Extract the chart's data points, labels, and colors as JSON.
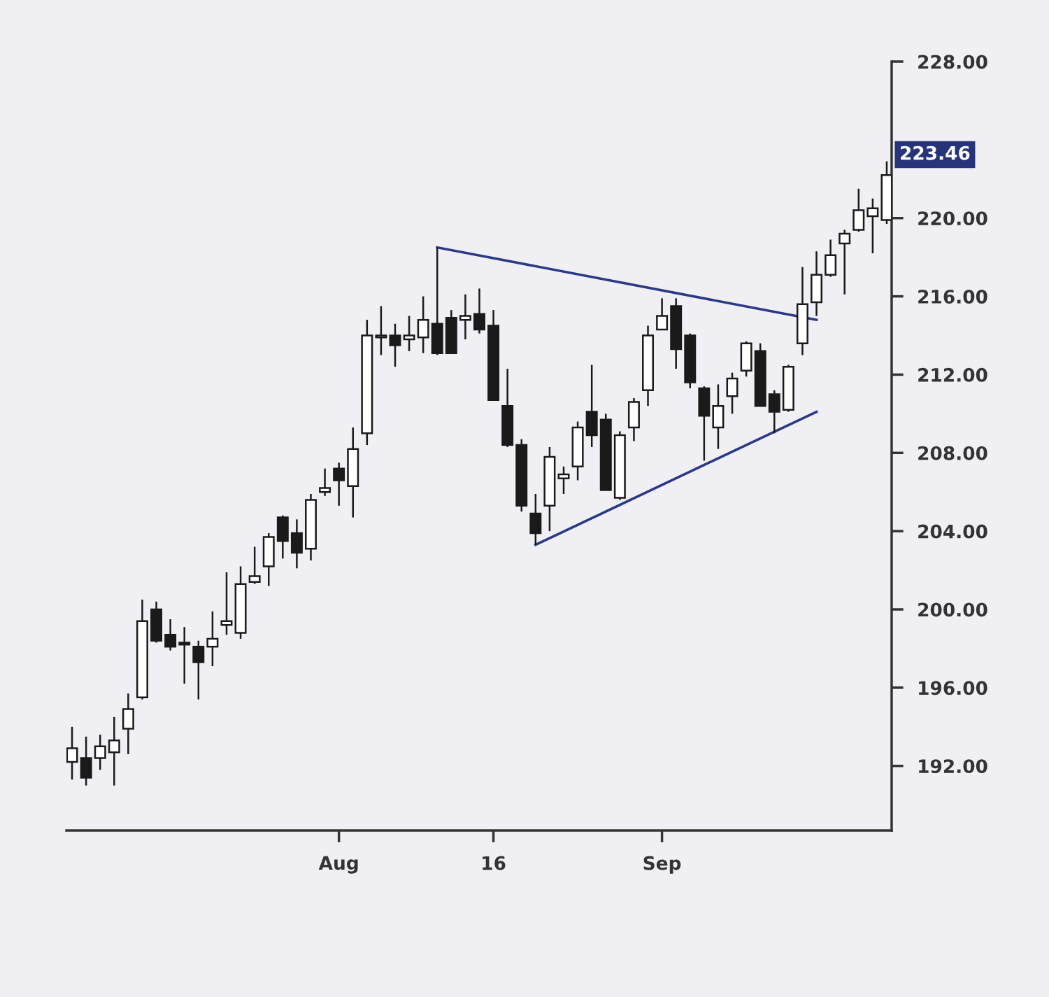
{
  "chart_data": {
    "type": "candlestick",
    "categories": [
      null,
      null,
      null,
      null,
      null,
      null,
      null,
      null,
      null,
      null,
      null,
      null,
      null,
      null,
      null,
      null,
      null,
      null,
      null,
      "Aug",
      null,
      null,
      null,
      null,
      null,
      null,
      null,
      null,
      null,
      null,
      "16",
      null,
      null,
      null,
      null,
      null,
      null,
      null,
      null,
      null,
      null,
      null,
      "Sep",
      null,
      null,
      null,
      null,
      null,
      null,
      null,
      null,
      null,
      null,
      null,
      null,
      null,
      null,
      null,
      null
    ],
    "ohlc": [
      [
        192.2,
        194.0,
        191.3,
        192.9
      ],
      [
        192.4,
        193.5,
        191.0,
        191.4
      ],
      [
        192.4,
        193.6,
        191.8,
        193.0
      ],
      [
        192.7,
        194.5,
        191.0,
        193.3
      ],
      [
        193.9,
        195.7,
        192.6,
        194.9
      ],
      [
        195.5,
        200.5,
        195.4,
        199.4
      ],
      [
        200.0,
        200.4,
        198.3,
        198.4
      ],
      [
        198.7,
        199.5,
        197.9,
        198.1
      ],
      [
        198.3,
        199.1,
        196.2,
        198.2
      ],
      [
        198.1,
        198.4,
        195.4,
        197.3
      ],
      [
        198.1,
        199.9,
        197.1,
        198.5
      ],
      [
        199.2,
        201.9,
        198.7,
        199.4
      ],
      [
        198.8,
        202.2,
        198.5,
        201.3
      ],
      [
        201.4,
        203.2,
        201.3,
        201.7
      ],
      [
        202.2,
        203.9,
        201.2,
        203.7
      ],
      [
        204.7,
        204.8,
        202.6,
        203.5
      ],
      [
        203.9,
        204.6,
        202.1,
        202.9
      ],
      [
        203.1,
        205.9,
        202.5,
        205.6
      ],
      [
        206.0,
        207.2,
        205.8,
        206.2
      ],
      [
        207.2,
        207.5,
        205.3,
        206.6
      ],
      [
        206.3,
        209.3,
        204.7,
        208.2
      ],
      [
        209.0,
        214.8,
        208.4,
        214.0
      ],
      [
        213.9,
        215.5,
        213.0,
        214.0
      ],
      [
        214.0,
        214.6,
        212.4,
        213.5
      ],
      [
        213.8,
        215.0,
        213.2,
        214.0
      ],
      [
        213.9,
        216.0,
        213.1,
        214.8
      ],
      [
        214.6,
        218.5,
        213.0,
        213.1
      ],
      [
        214.9,
        215.3,
        213.1,
        213.1
      ],
      [
        214.8,
        216.1,
        213.8,
        215.0
      ],
      [
        215.1,
        216.4,
        214.1,
        214.3
      ],
      [
        214.5,
        215.3,
        210.7,
        210.7
      ],
      [
        210.4,
        212.3,
        208.3,
        208.4
      ],
      [
        208.4,
        208.7,
        205.0,
        205.3
      ],
      [
        204.9,
        205.9,
        203.3,
        203.9
      ],
      [
        205.3,
        208.3,
        204.0,
        207.8
      ],
      [
        206.7,
        207.3,
        205.9,
        206.9
      ],
      [
        207.3,
        209.6,
        206.6,
        209.3
      ],
      [
        210.1,
        212.5,
        208.3,
        208.9
      ],
      [
        209.7,
        210.0,
        206.1,
        206.1
      ],
      [
        205.7,
        209.1,
        205.6,
        208.9
      ],
      [
        209.3,
        210.8,
        208.6,
        210.6
      ],
      [
        211.2,
        214.5,
        210.4,
        214.0
      ],
      [
        214.3,
        215.9,
        214.3,
        215.0
      ],
      [
        215.5,
        215.9,
        212.3,
        213.3
      ],
      [
        214.0,
        214.1,
        211.3,
        211.6
      ],
      [
        211.3,
        211.4,
        207.6,
        209.9
      ],
      [
        209.3,
        211.5,
        208.2,
        210.4
      ],
      [
        210.9,
        212.1,
        210.0,
        211.8
      ],
      [
        212.2,
        213.7,
        211.9,
        213.6
      ],
      [
        213.2,
        213.6,
        210.4,
        210.4
      ],
      [
        211.0,
        211.2,
        209.0,
        210.1
      ],
      [
        210.2,
        212.5,
        210.1,
        212.4
      ],
      [
        213.6,
        217.5,
        213.0,
        215.6
      ],
      [
        215.7,
        218.3,
        215.0,
        217.1
      ],
      [
        217.1,
        218.9,
        217.0,
        218.1
      ],
      [
        218.7,
        219.4,
        216.1,
        219.2
      ],
      [
        219.4,
        221.5,
        219.3,
        220.4
      ],
      [
        220.1,
        221.0,
        218.2,
        220.5
      ],
      [
        219.9,
        222.9,
        219.7,
        222.2
      ]
    ],
    "colors": [
      "#ffffff",
      "#1a1a1a",
      "#ffffff",
      "#ffffff",
      "#ffffff",
      "#ffffff",
      "#1a1a1a",
      "#1a1a1a",
      "#1a1a1a",
      "#1a1a1a",
      "#ffffff",
      "#ffffff",
      "#ffffff",
      "#ffffff",
      "#ffffff",
      "#1a1a1a",
      "#1a1a1a",
      "#ffffff",
      "#ffffff",
      "#1a1a1a",
      "#ffffff",
      "#ffffff",
      "#ffffff",
      "#1a1a1a",
      "#ffffff",
      "#ffffff",
      "#1a1a1a",
      "#1a1a1a",
      "#ffffff",
      "#1a1a1a",
      "#1a1a1a",
      "#1a1a1a",
      "#1a1a1a",
      "#1a1a1a",
      "#ffffff",
      "#ffffff",
      "#ffffff",
      "#1a1a1a",
      "#1a1a1a",
      "#ffffff",
      "#ffffff",
      "#ffffff",
      "#ffffff",
      "#1a1a1a",
      "#1a1a1a",
      "#1a1a1a",
      "#ffffff",
      "#ffffff",
      "#ffffff",
      "#1a1a1a",
      "#1a1a1a",
      "#ffffff",
      "#ffffff",
      "#ffffff",
      "#ffffff",
      "#ffffff",
      "#ffffff",
      "#ffffff",
      "#ffffff"
    ],
    "series": [
      {
        "type": "line",
        "values": [
          null,
          null,
          null,
          null,
          null,
          null,
          null,
          null,
          null,
          null,
          null,
          null,
          null,
          null,
          null,
          null,
          null,
          null,
          null,
          null,
          null,
          null,
          null,
          null,
          null,
          null,
          218.5,
          null,
          null,
          null,
          null,
          null,
          null,
          null,
          null,
          null,
          null,
          null,
          null,
          null,
          null,
          null,
          null,
          null,
          null,
          null,
          null,
          null,
          null,
          null,
          null,
          null,
          null,
          214.8,
          null,
          null,
          null,
          null,
          null
        ],
        "color": "#2b3a85"
      },
      {
        "type": "line",
        "values": [
          null,
          null,
          null,
          null,
          null,
          null,
          null,
          null,
          null,
          null,
          null,
          null,
          null,
          null,
          null,
          null,
          null,
          null,
          null,
          null,
          null,
          null,
          null,
          null,
          null,
          null,
          null,
          null,
          null,
          null,
          null,
          null,
          null,
          203.3,
          null,
          null,
          null,
          null,
          null,
          null,
          null,
          null,
          null,
          null,
          null,
          null,
          null,
          null,
          null,
          null,
          null,
          null,
          null,
          210.1,
          null,
          null,
          null,
          null,
          null
        ],
        "color": "#2b3a85"
      }
    ],
    "ylim": [
      188.7,
      228
    ],
    "yticks": [
      {
        "value": 192,
        "label": "192.00"
      },
      {
        "value": 196,
        "label": "196.00"
      },
      {
        "value": 200,
        "label": "200.00"
      },
      {
        "value": 204,
        "label": "204.00"
      },
      {
        "value": 208,
        "label": "208.00"
      },
      {
        "value": 212,
        "label": "212.00"
      },
      {
        "value": 216,
        "label": "216.00"
      },
      {
        "value": 220,
        "label": "220.00"
      },
      {
        "value": 228,
        "label": "228.00"
      }
    ],
    "annotations": [
      "223.46"
    ],
    "grid": false,
    "legend": false
  }
}
